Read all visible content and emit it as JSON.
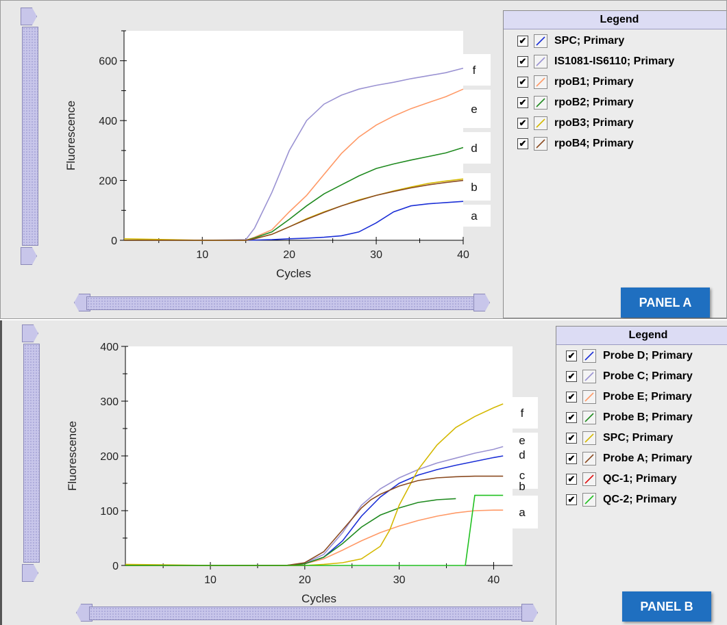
{
  "chart_data": [
    {
      "type": "line",
      "panel_label": "PANEL A",
      "xlabel": "Cycles",
      "ylabel": "Fluorescence",
      "xlim": [
        1,
        40
      ],
      "ylim": [
        0,
        700
      ],
      "xticks": [
        10,
        20,
        30,
        40
      ],
      "yticks": [
        0,
        200,
        400,
        600
      ],
      "grid": false,
      "legend_title": "Legend",
      "legend_placement": "right",
      "series": [
        {
          "name": "SPC; Primary",
          "color": "#1a2ed6",
          "x": [
            1,
            10,
            15,
            18,
            20,
            22,
            24,
            26,
            28,
            30,
            32,
            34,
            36,
            38,
            40
          ],
          "y": [
            0,
            0,
            0,
            2,
            5,
            7,
            10,
            15,
            28,
            58,
            95,
            115,
            122,
            126,
            130
          ]
        },
        {
          "name": "IS1081-IS6110; Primary",
          "color": "#9a92d2",
          "x": [
            1,
            10,
            15,
            16,
            18,
            20,
            22,
            24,
            26,
            28,
            30,
            32,
            34,
            36,
            38,
            40
          ],
          "y": [
            0,
            0,
            2,
            40,
            160,
            300,
            400,
            455,
            485,
            505,
            518,
            528,
            540,
            550,
            560,
            575
          ]
        },
        {
          "name": "rpoB1; Primary",
          "color": "#ff9966",
          "x": [
            1,
            10,
            15,
            16,
            18,
            20,
            22,
            24,
            26,
            28,
            30,
            32,
            34,
            36,
            38,
            40
          ],
          "y": [
            0,
            0,
            0,
            10,
            35,
            95,
            150,
            220,
            290,
            345,
            385,
            415,
            440,
            460,
            480,
            505
          ]
        },
        {
          "name": "rpoB2; Primary",
          "color": "#1f8a1f",
          "x": [
            1,
            10,
            15,
            16,
            18,
            20,
            22,
            24,
            26,
            28,
            30,
            32,
            34,
            36,
            38,
            40
          ],
          "y": [
            0,
            0,
            0,
            8,
            28,
            70,
            115,
            155,
            185,
            215,
            240,
            255,
            268,
            280,
            292,
            310
          ]
        },
        {
          "name": "rpoB3; Primary",
          "color": "#d4b800",
          "x": [
            1,
            10,
            15,
            16,
            18,
            20,
            22,
            24,
            26,
            28,
            30,
            32,
            34,
            36,
            38,
            40
          ],
          "y": [
            5,
            0,
            0,
            5,
            20,
            45,
            72,
            95,
            115,
            135,
            150,
            165,
            178,
            190,
            198,
            205
          ]
        },
        {
          "name": "rpoB4; Primary",
          "color": "#8a4a20",
          "x": [
            1,
            10,
            15,
            16,
            18,
            20,
            22,
            24,
            26,
            28,
            30,
            32,
            34,
            36,
            38,
            40
          ],
          "y": [
            0,
            0,
            0,
            5,
            20,
            45,
            70,
            93,
            115,
            133,
            150,
            163,
            175,
            185,
            193,
            200
          ]
        }
      ],
      "curve_labels": [
        {
          "text": "f",
          "series": "IS1081-IS6110; Primary"
        },
        {
          "text": "e",
          "series": "rpoB1; Primary"
        },
        {
          "text": "d",
          "series": "rpoB2; Primary"
        },
        {
          "text": "b",
          "series": "rpoB3; Primary"
        },
        {
          "text": "a",
          "series": "SPC; Primary"
        }
      ]
    },
    {
      "type": "line",
      "panel_label": "PANEL B",
      "xlabel": "Cycles",
      "ylabel": "Fluorescence",
      "xlim": [
        1,
        42
      ],
      "ylim": [
        0,
        400
      ],
      "xticks": [
        10,
        20,
        30,
        40
      ],
      "yticks": [
        0,
        100,
        200,
        300,
        400
      ],
      "grid": false,
      "legend_title": "Legend",
      "legend_placement": "right",
      "series": [
        {
          "name": "Probe D; Primary",
          "color": "#1a2ed6",
          "x": [
            1,
            10,
            18,
            20,
            22,
            24,
            26,
            28,
            30,
            32,
            34,
            36,
            38,
            40,
            41
          ],
          "y": [
            0,
            0,
            0,
            3,
            15,
            45,
            90,
            125,
            150,
            165,
            175,
            183,
            190,
            197,
            200
          ]
        },
        {
          "name": "Probe C; Primary",
          "color": "#9a92d2",
          "x": [
            1,
            10,
            18,
            20,
            22,
            24,
            26,
            28,
            30,
            32,
            34,
            36,
            38,
            40,
            41
          ],
          "y": [
            0,
            0,
            0,
            4,
            20,
            60,
            110,
            140,
            160,
            175,
            187,
            196,
            205,
            212,
            217
          ]
        },
        {
          "name": "Probe E; Primary",
          "color": "#ff9966",
          "x": [
            1,
            10,
            18,
            20,
            22,
            24,
            26,
            28,
            30,
            32,
            34,
            36,
            38,
            40,
            41
          ],
          "y": [
            0,
            0,
            0,
            3,
            12,
            28,
            45,
            60,
            72,
            82,
            90,
            96,
            100,
            101,
            101
          ]
        },
        {
          "name": "Probe B; Primary",
          "color": "#1f8a1f",
          "x": [
            1,
            10,
            18,
            20,
            22,
            24,
            26,
            28,
            30,
            32,
            34,
            36
          ],
          "y": [
            0,
            0,
            0,
            3,
            15,
            40,
            70,
            92,
            105,
            115,
            120,
            122
          ]
        },
        {
          "name": "SPC; Primary",
          "color": "#d4b800",
          "x": [
            1,
            10,
            20,
            22,
            24,
            26,
            28,
            29,
            30,
            32,
            34,
            36,
            38,
            40,
            41
          ],
          "y": [
            2,
            0,
            0,
            2,
            5,
            12,
            35,
            65,
            110,
            175,
            220,
            252,
            272,
            288,
            295
          ]
        },
        {
          "name": "Probe A; Primary",
          "color": "#8a4a20",
          "x": [
            1,
            10,
            18,
            20,
            22,
            24,
            26,
            27,
            28,
            30,
            32,
            34,
            36,
            38,
            40,
            41
          ],
          "y": [
            0,
            0,
            0,
            5,
            25,
            65,
            105,
            120,
            130,
            145,
            155,
            160,
            162,
            163,
            163,
            163
          ]
        },
        {
          "name": "QC-1; Primary",
          "color": "#e01010",
          "x": [
            1,
            10,
            20
          ],
          "y": [
            0,
            0,
            0
          ]
        },
        {
          "name": "QC-2; Primary",
          "color": "#20c020",
          "x": [
            1,
            10,
            20,
            37,
            38,
            40,
            41
          ],
          "y": [
            0,
            0,
            0,
            0,
            128,
            128,
            128
          ]
        }
      ],
      "curve_labels": [
        {
          "text": "f",
          "series": "SPC; Primary"
        },
        {
          "text": "e",
          "series": "Probe C; Primary"
        },
        {
          "text": "d",
          "series": "Probe D; Primary"
        },
        {
          "text": "c",
          "series": "Probe A; Primary"
        },
        {
          "text": "b",
          "series": "Probe B; Primary"
        },
        {
          "text": "a",
          "series": "Probe E; Primary"
        }
      ]
    }
  ]
}
